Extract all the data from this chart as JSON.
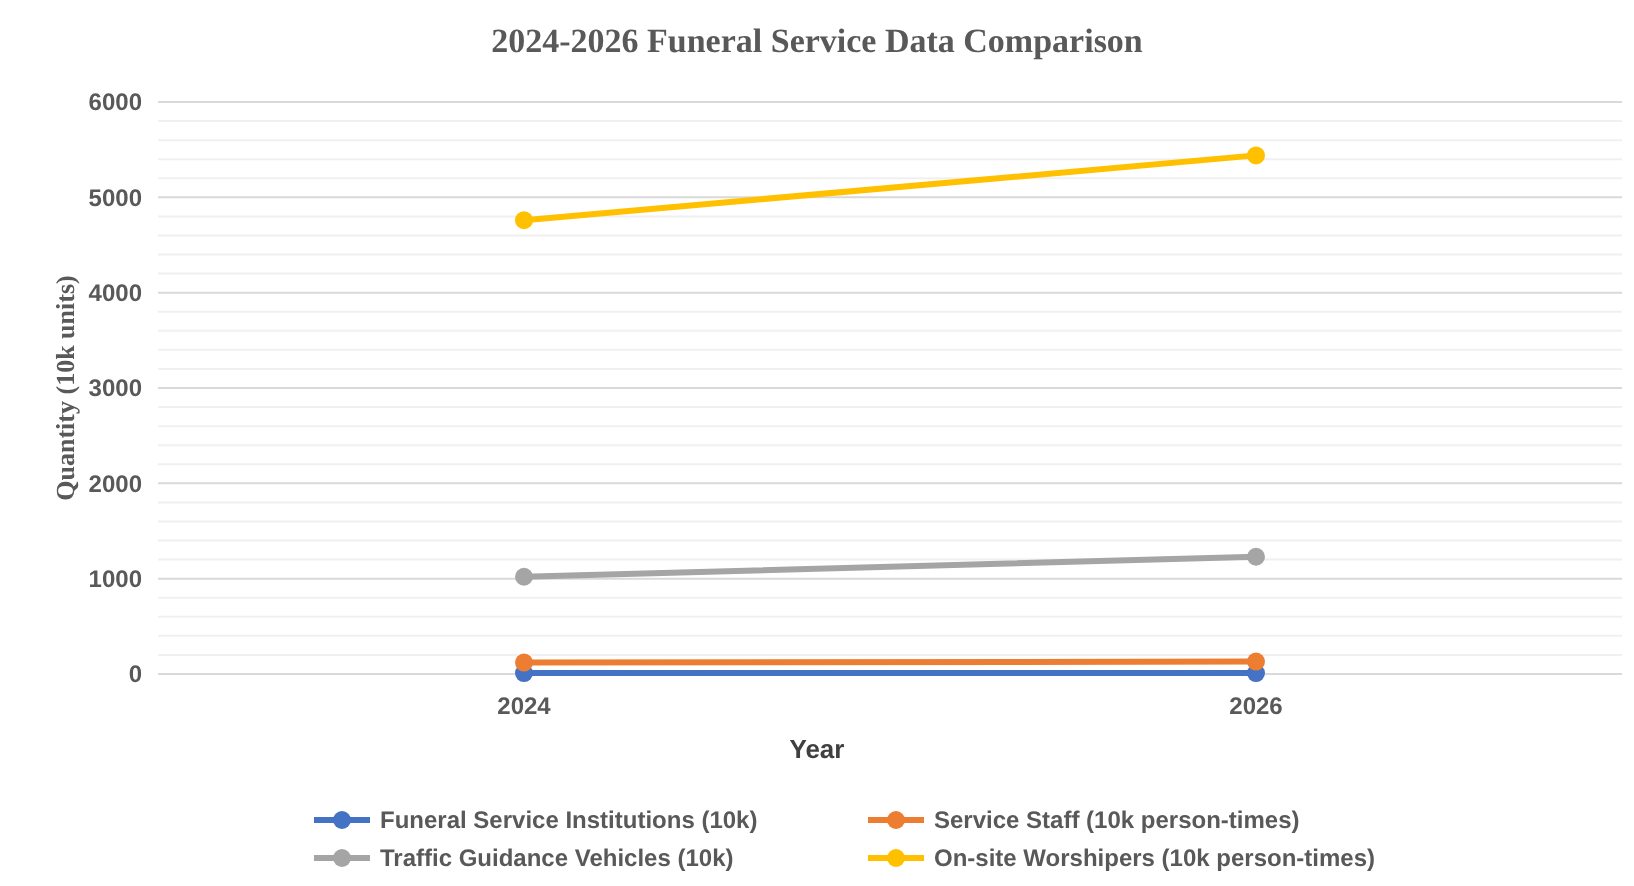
{
  "chart_data": {
    "type": "line",
    "title": "2024-2026 Funeral Service Data Comparison",
    "xlabel": "Year",
    "ylabel": "Quantity (10k units)",
    "categories": [
      "2024",
      "2026"
    ],
    "series": [
      {
        "name": "Funeral Service Institutions (10k)",
        "color": "#4472c4",
        "values": [
          10,
          10
        ]
      },
      {
        "name": "Service Staff (10k person-times)",
        "color": "#ed7d31",
        "values": [
          120,
          130
        ]
      },
      {
        "name": "Traffic Guidance Vehicles (10k)",
        "color": "#a5a5a5",
        "values": [
          1020,
          1230
        ]
      },
      {
        "name": "On-site Worshipers (10k person-times)",
        "color": "#ffc000",
        "values": [
          4760,
          5440
        ]
      }
    ],
    "ylim": [
      0,
      6000
    ],
    "yticks": [
      0,
      {
        "value": 200,
        "label": null
      },
      {
        "value": 400,
        "label": null
      },
      {
        "value": 600,
        "label": null
      },
      {
        "value": 800,
        "label": null
      },
      1000,
      {
        "value": 1200,
        "label": null
      },
      {
        "value": 1400,
        "label": null
      },
      {
        "value": 1600,
        "label": null
      },
      {
        "value": 1800,
        "label": null
      },
      2000,
      {
        "value": 2200,
        "label": null
      },
      {
        "value": 2400,
        "label": null
      },
      {
        "value": 2600,
        "label": null
      },
      {
        "value": 2800,
        "label": null
      },
      3000,
      {
        "value": 3200,
        "label": null
      },
      {
        "value": 3400,
        "label": null
      },
      {
        "value": 3600,
        "label": null
      },
      {
        "value": 3800,
        "label": null
      },
      4000,
      {
        "value": 4200,
        "label": null
      },
      {
        "value": 4400,
        "label": null
      },
      {
        "value": 4600,
        "label": null
      },
      {
        "value": 4800,
        "label": null
      },
      5000,
      {
        "value": 5200,
        "label": null
      },
      {
        "value": 5400,
        "label": null
      },
      {
        "value": 5600,
        "label": null
      },
      {
        "value": 5800,
        "label": null
      },
      6000
    ],
    "grid": "y",
    "legend": "bottom",
    "marker": "circle",
    "line_style": "solid"
  }
}
